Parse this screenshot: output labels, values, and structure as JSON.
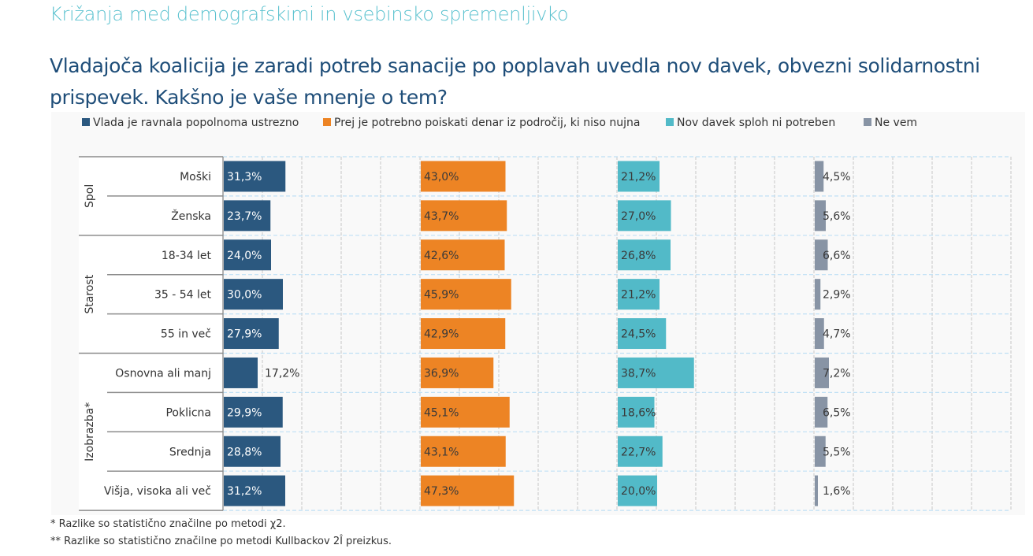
{
  "header": {
    "section_title": "Križanja med demografskimi in vsebinsko spremenljivko",
    "question": "Vladajoča koalicija je zaradi potreb sanacije po poplavah uvedla nov davek, obvezni solidarnostni prispevek. Kakšno je vaše mnenje o tem?"
  },
  "footnotes": [
    "* Razlike so statistično značilne po metodi χ2.",
    "** Razlike so statistično značilne po metodi Kullbackov 2Î preizkus."
  ],
  "chart_data": {
    "type": "bar",
    "orientation": "horizontal",
    "layout": "panel-per-series",
    "title": "Vladajoča koalicija je zaradi potreb sanacije po poplavah uvedla nov davek, obvezni solidarnostni prispevek. Kakšno je vaše mnenje o tem?",
    "xlabel": "",
    "ylabel": "",
    "xlim": [
      0,
      100
    ],
    "unit": "%",
    "grid": true,
    "legend_position": "top",
    "groups": [
      {
        "name": "Spol",
        "categories": [
          "Moški",
          "Ženska"
        ]
      },
      {
        "name": "Starost",
        "categories": [
          "18-34 let",
          "35 - 54 let",
          "55 in več"
        ]
      },
      {
        "name": "Izobrazba*",
        "categories": [
          "Osnovna ali manj",
          "Poklicna",
          "Srednja",
          "Višja, visoka ali več"
        ]
      }
    ],
    "categories": [
      "Moški",
      "Ženska",
      "18-34 let",
      "35 - 54 let",
      "55 in več",
      "Osnovna ali manj",
      "Poklicna",
      "Srednja",
      "Višja, visoka ali več"
    ],
    "series": [
      {
        "name": "Vlada je ravnala popolnoma ustrezno",
        "color": "#2b587f",
        "values": [
          31.3,
          23.7,
          24.0,
          30.0,
          27.9,
          17.2,
          29.9,
          28.8,
          31.2
        ],
        "labels": [
          "31,3%",
          "23,7%",
          "24,0%",
          "30,0%",
          "27,9%",
          "17,2%",
          "29,9%",
          "28,8%",
          "31,2%"
        ]
      },
      {
        "name": "Prej je potrebno poiskati denar iz področij, ki niso nujna",
        "color": "#ed8424",
        "values": [
          43.0,
          43.7,
          42.6,
          45.9,
          42.9,
          36.9,
          45.1,
          43.1,
          47.3
        ],
        "labels": [
          "43,0%",
          "43,7%",
          "42,6%",
          "45,9%",
          "42,9%",
          "36,9%",
          "45,1%",
          "43,1%",
          "47,3%"
        ]
      },
      {
        "name": "Nov davek sploh ni potreben",
        "color": "#52bac8",
        "values": [
          21.2,
          27.0,
          26.8,
          21.2,
          24.5,
          38.7,
          18.6,
          22.7,
          20.0
        ],
        "labels": [
          "21,2%",
          "27,0%",
          "26,8%",
          "21,2%",
          "24,5%",
          "38,7%",
          "18,6%",
          "22,7%",
          "20,0%"
        ]
      },
      {
        "name": "Ne vem",
        "color": "#8894a5",
        "values": [
          4.5,
          5.6,
          6.6,
          2.9,
          4.7,
          7.2,
          6.5,
          5.5,
          1.6
        ],
        "labels": [
          "4,5%",
          "5,6%",
          "6,6%",
          "2,9%",
          "4,7%",
          "7,2%",
          "6,5%",
          "5,5%",
          "1,6%"
        ]
      }
    ]
  }
}
